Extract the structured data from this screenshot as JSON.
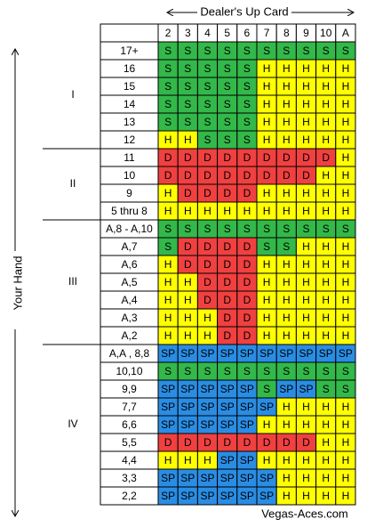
{
  "header": {
    "title": "Dealer's Up Card"
  },
  "side_label": "Your Hand",
  "footer": "Vegas-Aces.com",
  "columns": [
    "2",
    "3",
    "4",
    "5",
    "6",
    "7",
    "8",
    "9",
    "10",
    "A"
  ],
  "colors": {
    "S": "#33b84a",
    "H": "#ffff00",
    "D": "#f04040",
    "SP": "#2a8de4"
  },
  "groups": [
    {
      "label": "I",
      "rows": [
        {
          "hand": "17+",
          "actions": [
            "S",
            "S",
            "S",
            "S",
            "S",
            "S",
            "S",
            "S",
            "S",
            "S"
          ]
        },
        {
          "hand": "16",
          "actions": [
            "S",
            "S",
            "S",
            "S",
            "S",
            "H",
            "H",
            "H",
            "H",
            "H"
          ]
        },
        {
          "hand": "15",
          "actions": [
            "S",
            "S",
            "S",
            "S",
            "S",
            "H",
            "H",
            "H",
            "H",
            "H"
          ]
        },
        {
          "hand": "14",
          "actions": [
            "S",
            "S",
            "S",
            "S",
            "S",
            "H",
            "H",
            "H",
            "H",
            "H"
          ]
        },
        {
          "hand": "13",
          "actions": [
            "S",
            "S",
            "S",
            "S",
            "S",
            "H",
            "H",
            "H",
            "H",
            "H"
          ]
        },
        {
          "hand": "12",
          "actions": [
            "H",
            "H",
            "S",
            "S",
            "S",
            "H",
            "H",
            "H",
            "H",
            "H"
          ]
        }
      ]
    },
    {
      "label": "II",
      "rows": [
        {
          "hand": "11",
          "actions": [
            "D",
            "D",
            "D",
            "D",
            "D",
            "D",
            "D",
            "D",
            "D",
            "H"
          ]
        },
        {
          "hand": "10",
          "actions": [
            "D",
            "D",
            "D",
            "D",
            "D",
            "D",
            "D",
            "D",
            "H",
            "H"
          ]
        },
        {
          "hand": "9",
          "actions": [
            "H",
            "D",
            "D",
            "D",
            "D",
            "H",
            "H",
            "H",
            "H",
            "H"
          ]
        },
        {
          "hand": "5 thru 8",
          "actions": [
            "H",
            "H",
            "H",
            "H",
            "H",
            "H",
            "H",
            "H",
            "H",
            "H"
          ]
        }
      ]
    },
    {
      "label": "III",
      "rows": [
        {
          "hand": "A,8 - A,10",
          "actions": [
            "S",
            "S",
            "S",
            "S",
            "S",
            "S",
            "S",
            "S",
            "S",
            "S"
          ]
        },
        {
          "hand": "A,7",
          "actions": [
            "S",
            "D",
            "D",
            "D",
            "D",
            "S",
            "S",
            "H",
            "H",
            "H"
          ]
        },
        {
          "hand": "A,6",
          "actions": [
            "H",
            "D",
            "D",
            "D",
            "D",
            "H",
            "H",
            "H",
            "H",
            "H"
          ]
        },
        {
          "hand": "A,5",
          "actions": [
            "H",
            "H",
            "D",
            "D",
            "D",
            "H",
            "H",
            "H",
            "H",
            "H"
          ]
        },
        {
          "hand": "A,4",
          "actions": [
            "H",
            "H",
            "D",
            "D",
            "D",
            "H",
            "H",
            "H",
            "H",
            "H"
          ]
        },
        {
          "hand": "A,3",
          "actions": [
            "H",
            "H",
            "H",
            "D",
            "D",
            "H",
            "H",
            "H",
            "H",
            "H"
          ]
        },
        {
          "hand": "A,2",
          "actions": [
            "H",
            "H",
            "H",
            "D",
            "D",
            "H",
            "H",
            "H",
            "H",
            "H"
          ]
        }
      ]
    },
    {
      "label": "IV",
      "rows": [
        {
          "hand": "A,A , 8,8",
          "actions": [
            "SP",
            "SP",
            "SP",
            "SP",
            "SP",
            "SP",
            "SP",
            "SP",
            "SP",
            "SP"
          ]
        },
        {
          "hand": "10,10",
          "actions": [
            "S",
            "S",
            "S",
            "S",
            "S",
            "S",
            "S",
            "S",
            "S",
            "S"
          ]
        },
        {
          "hand": "9,9",
          "actions": [
            "SP",
            "SP",
            "SP",
            "SP",
            "SP",
            "S",
            "SP",
            "SP",
            "S",
            "S"
          ]
        },
        {
          "hand": "7,7",
          "actions": [
            "SP",
            "SP",
            "SP",
            "SP",
            "SP",
            "SP",
            "H",
            "H",
            "H",
            "H"
          ]
        },
        {
          "hand": "6,6",
          "actions": [
            "SP",
            "SP",
            "SP",
            "SP",
            "SP",
            "H",
            "H",
            "H",
            "H",
            "H"
          ]
        },
        {
          "hand": "5,5",
          "actions": [
            "D",
            "D",
            "D",
            "D",
            "D",
            "D",
            "D",
            "D",
            "H",
            "H"
          ]
        },
        {
          "hand": "4,4",
          "actions": [
            "H",
            "H",
            "H",
            "SP",
            "SP",
            "H",
            "H",
            "H",
            "H",
            "H"
          ]
        },
        {
          "hand": "3,3",
          "actions": [
            "SP",
            "SP",
            "SP",
            "SP",
            "SP",
            "SP",
            "H",
            "H",
            "H",
            "H"
          ]
        },
        {
          "hand": "2,2",
          "actions": [
            "SP",
            "SP",
            "SP",
            "SP",
            "SP",
            "SP",
            "H",
            "H",
            "H",
            "H"
          ]
        }
      ]
    }
  ]
}
